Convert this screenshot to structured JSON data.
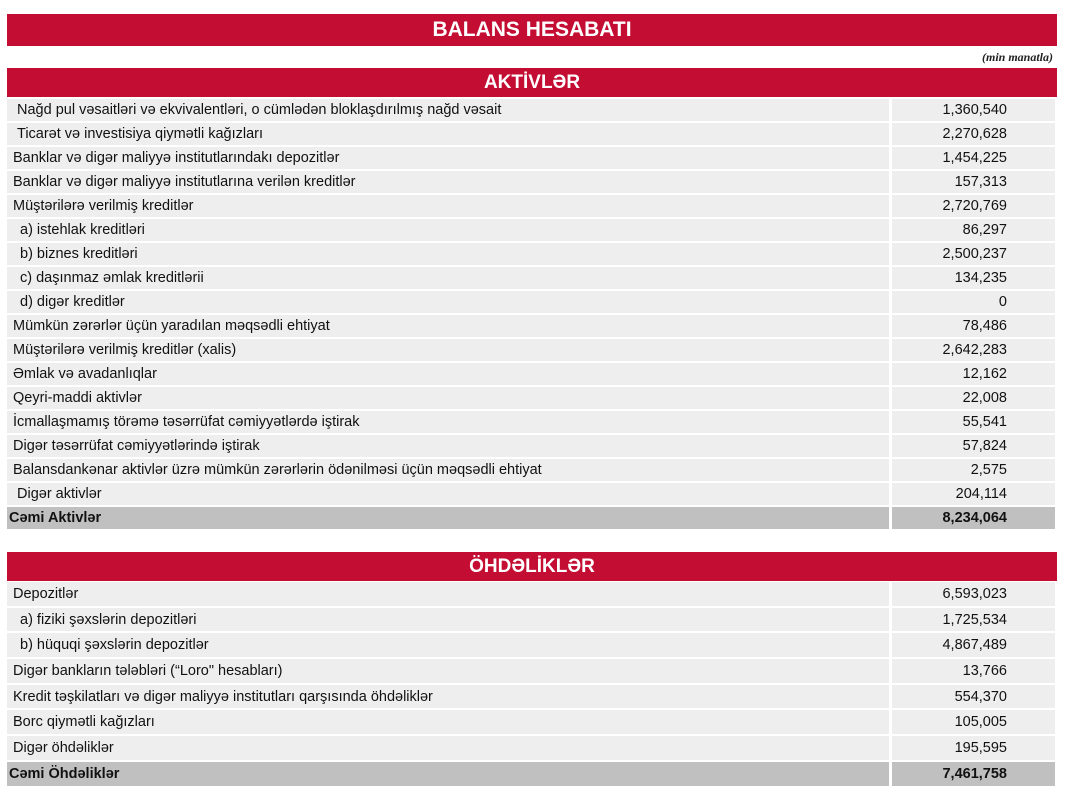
{
  "title": "BALANS HESABATI",
  "unit": "(min manatla)",
  "assets": {
    "header": "AKTİVLƏR",
    "rows": [
      {
        "label": "Nağd pul vəsaitləri və ekvivalentləri, o cümlədən bloklaşdırılmış nağd vəsait",
        "value": "1,360,540",
        "indent": 1
      },
      {
        "label": "Ticarət və investisiya qiymətli kağızları",
        "value": "2,270,628",
        "indent": 1
      },
      {
        "label": "Banklar və digər maliyyə institutlarındakı depozitlər",
        "value": "1,454,225",
        "indent": 0
      },
      {
        "label": "Banklar və digər maliyyə institutlarına verilən kreditlər",
        "value": "157,313",
        "indent": 0
      },
      {
        "label": "Müştərilərə verilmiş kreditlər",
        "value": "2,720,769",
        "indent": 0
      },
      {
        "label": "a) istehlak kreditləri",
        "value": "86,297",
        "indent": 2
      },
      {
        "label": "b) biznes kreditləri",
        "value": "2,500,237",
        "indent": 2
      },
      {
        "label": "c) daşınmaz əmlak kreditlərii",
        "value": "134,235",
        "indent": 2
      },
      {
        "label": "d) digər kreditlər",
        "value": "0",
        "indent": 2
      },
      {
        "label": "Mümkün zərərlər üçün yaradılan məqsədli ehtiyat",
        "value": "78,486",
        "indent": 0
      },
      {
        "label": "Müştərilərə verilmiş kreditlər (xalis)",
        "value": "2,642,283",
        "indent": 0
      },
      {
        "label": "Əmlak və avadanlıqlar",
        "value": "12,162",
        "indent": 0
      },
      {
        "label": "Qeyri-maddi aktivlər",
        "value": "22,008",
        "indent": 0
      },
      {
        "label": "İcmallaşmamış törəmə təsərrüfat cəmiyyətlərdə iştirak",
        "value": "55,541",
        "indent": 0
      },
      {
        "label": "Digər təsərrüfat cəmiyyətlərində iştirak",
        "value": "57,824",
        "indent": 0
      },
      {
        "label": "Balansdankənar aktivlər üzrə mümkün zərərlərin ödənilməsi üçün məqsədli ehtiyat",
        "value": "2,575",
        "indent": 0
      },
      {
        "label": "Digər aktivlər",
        "value": "204,114",
        "indent": 1
      }
    ],
    "total": {
      "label": "Cəmi Aktivlər",
      "value": "8,234,064"
    }
  },
  "liabilities": {
    "header": "ÖHDƏLİKLƏR",
    "rows": [
      {
        "label": "Depozitlər",
        "value": "6,593,023",
        "indent": 0
      },
      {
        "label": "a) fiziki şəxslərin depozitləri",
        "value": "1,725,534",
        "indent": 2
      },
      {
        "label": "b) hüquqi şəxslərin depozitlər",
        "value": "4,867,489",
        "indent": 2
      },
      {
        "label": "Digər bankların tələbləri (“Loro\" hesabları)",
        "value": "13,766",
        "indent": 0
      },
      {
        "label": "Kredit təşkilatları və digər maliyyə institutları qarşısında öhdəliklər",
        "value": "554,370",
        "indent": 0
      },
      {
        "label": "Borc qiymətli kağızları",
        "value": "105,005",
        "indent": 0
      },
      {
        "label": "Digər öhdəliklər",
        "value": "195,595",
        "indent": 0
      }
    ],
    "total": {
      "label": "Cəmi Öhdəliklər",
      "value": "7,461,758"
    }
  },
  "colors": {
    "header_red": "#c40d32",
    "row_bg": "#eeeeee",
    "total_bg": "#c0c0c0"
  }
}
